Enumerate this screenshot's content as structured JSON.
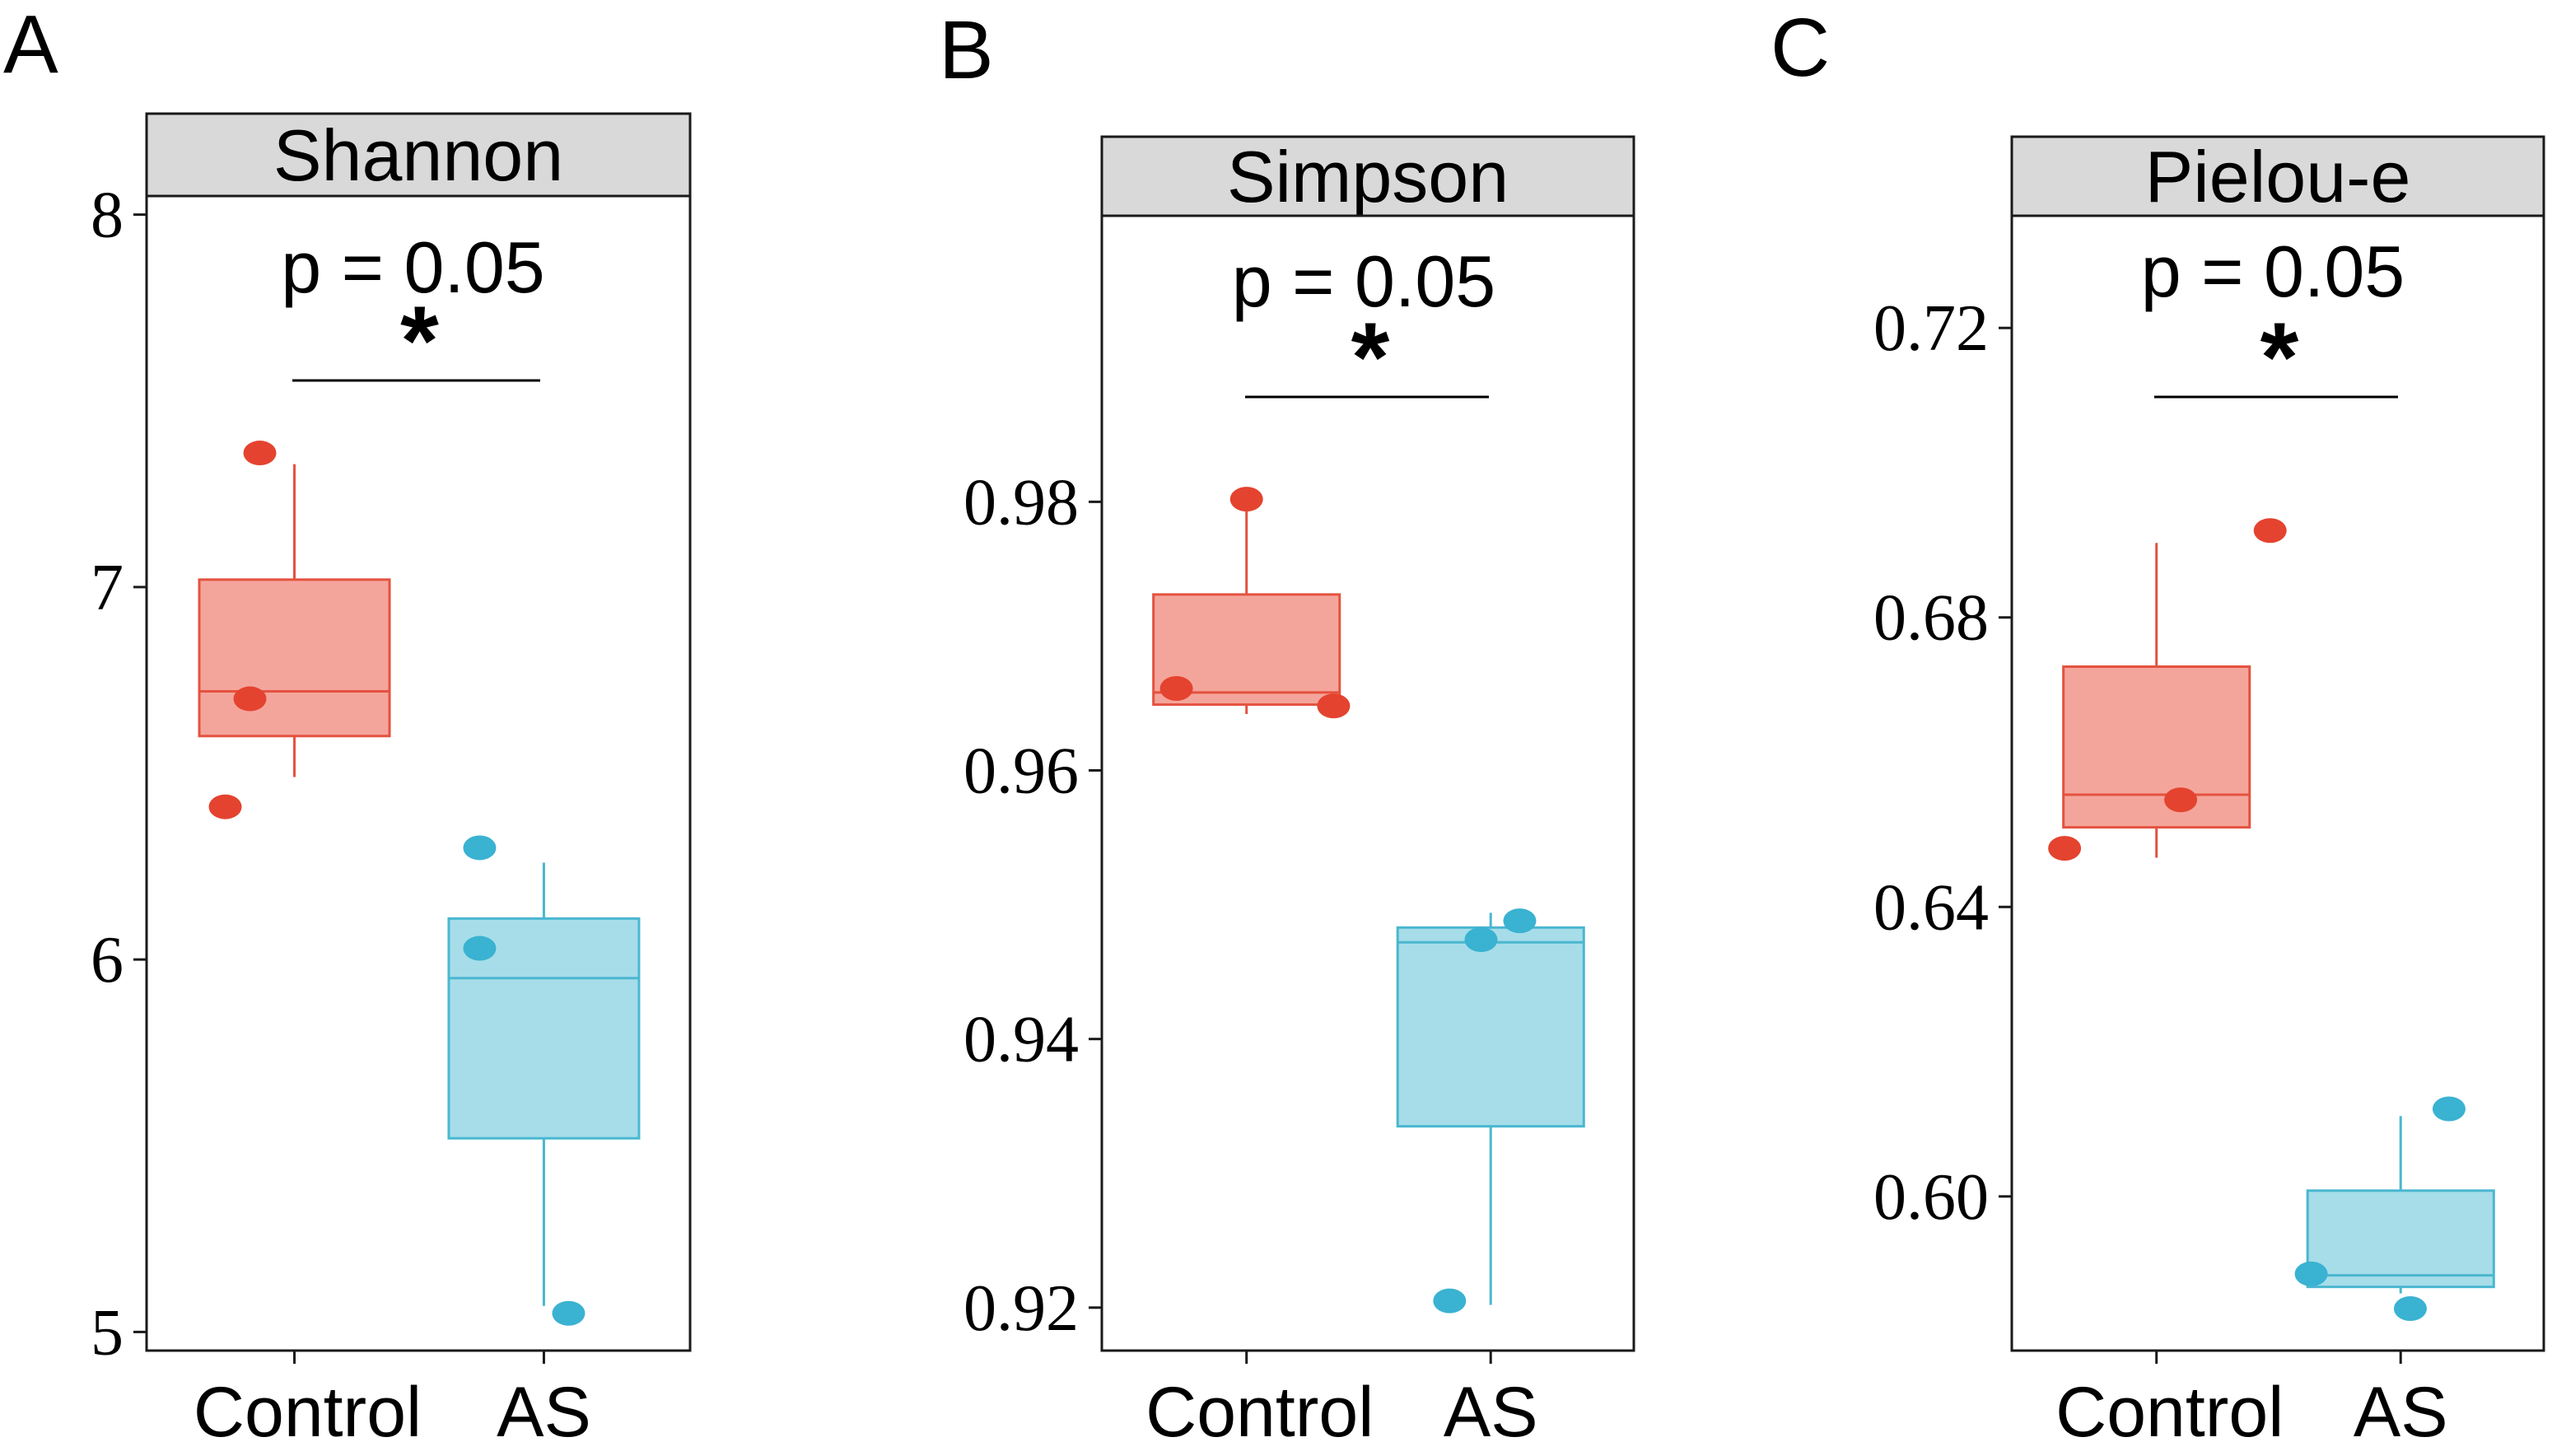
{
  "colors": {
    "control_fill": "#F4A59B",
    "control_line": "#E4523F",
    "control_point": "#E4432F",
    "as_fill": "#A6DDE9",
    "as_line": "#4AB7D0",
    "as_point": "#3AB2D1",
    "strip_fill": "#D9D9D9"
  },
  "chart_data": [
    {
      "panel": "A",
      "type": "box",
      "title": "Shannon",
      "categories": [
        "Control",
        "AS"
      ],
      "ylim": [
        4.95,
        8.05
      ],
      "yticks": [
        5,
        6,
        7,
        8
      ],
      "ytick_labels": [
        "5",
        "6",
        "7",
        "8"
      ],
      "annotation": {
        "p_label": "p = 0.05",
        "signif": "*"
      },
      "series": [
        {
          "name": "Control",
          "box": {
            "q1": 6.6,
            "median": 6.72,
            "q3": 7.02,
            "whisker_low": 6.49,
            "whisker_high": 7.33
          },
          "points": [
            {
              "offset": -0.28,
              "y": 6.41
            },
            {
              "offset": -0.18,
              "y": 6.7
            },
            {
              "offset": -0.14,
              "y": 7.36
            }
          ]
        },
        {
          "name": "AS",
          "box": {
            "q1": 5.52,
            "median": 5.95,
            "q3": 6.11,
            "whisker_low": 5.07,
            "whisker_high": 6.26
          },
          "points": [
            {
              "offset": -0.26,
              "y": 6.3
            },
            {
              "offset": -0.26,
              "y": 6.03
            },
            {
              "offset": 0.1,
              "y": 5.05
            }
          ]
        }
      ]
    },
    {
      "panel": "B",
      "type": "box",
      "title": "Simpson",
      "categories": [
        "Control",
        "AS"
      ],
      "ylim": [
        0.9168,
        1.0013
      ],
      "yticks": [
        0.92,
        0.94,
        0.96,
        0.98
      ],
      "ytick_labels": [
        "0.92",
        "0.94",
        "0.96",
        "0.98"
      ],
      "annotation": {
        "p_label": "p = 0.05",
        "signif": "*"
      },
      "series": [
        {
          "name": "Control",
          "box": {
            "q1": 0.9649,
            "median": 0.9658,
            "q3": 0.9731,
            "whisker_low": 0.9642,
            "whisker_high": 0.9798
          },
          "points": [
            {
              "offset": -0.29,
              "y": 0.9661
            },
            {
              "offset": 0.0,
              "y": 0.9802
            },
            {
              "offset": 0.36,
              "y": 0.9648
            }
          ]
        },
        {
          "name": "AS",
          "box": {
            "q1": 0.9335,
            "median": 0.9472,
            "q3": 0.9483,
            "whisker_low": 0.9202,
            "whisker_high": 0.9494
          },
          "points": [
            {
              "offset": -0.17,
              "y": 0.9205
            },
            {
              "offset": -0.04,
              "y": 0.9474
            },
            {
              "offset": 0.12,
              "y": 0.9488
            }
          ]
        }
      ]
    },
    {
      "panel": "C",
      "type": "box",
      "title": "Pielou-e",
      "categories": [
        "Control",
        "AS"
      ],
      "ylim": [
        0.5787,
        0.7355
      ],
      "yticks": [
        0.6,
        0.64,
        0.68,
        0.72
      ],
      "ytick_labels": [
        "0.60",
        "0.64",
        "0.68",
        "0.72"
      ],
      "annotation": {
        "p_label": "p = 0.05",
        "signif": "*"
      },
      "series": [
        {
          "name": "Control",
          "box": {
            "q1": 0.651,
            "median": 0.6555,
            "q3": 0.6732,
            "whisker_low": 0.6468,
            "whisker_high": 0.6903
          },
          "points": [
            {
              "offset": -0.38,
              "y": 0.6481
            },
            {
              "offset": 0.1,
              "y": 0.6548
            },
            {
              "offset": 0.47,
              "y": 0.692
            }
          ]
        },
        {
          "name": "AS",
          "box": {
            "q1": 0.5875,
            "median": 0.5891,
            "q3": 0.6008,
            "whisker_low": 0.5866,
            "whisker_high": 0.6111
          },
          "points": [
            {
              "offset": -0.37,
              "y": 0.5893
            },
            {
              "offset": 0.04,
              "y": 0.5845
            },
            {
              "offset": 0.2,
              "y": 0.6121
            }
          ]
        }
      ]
    }
  ]
}
